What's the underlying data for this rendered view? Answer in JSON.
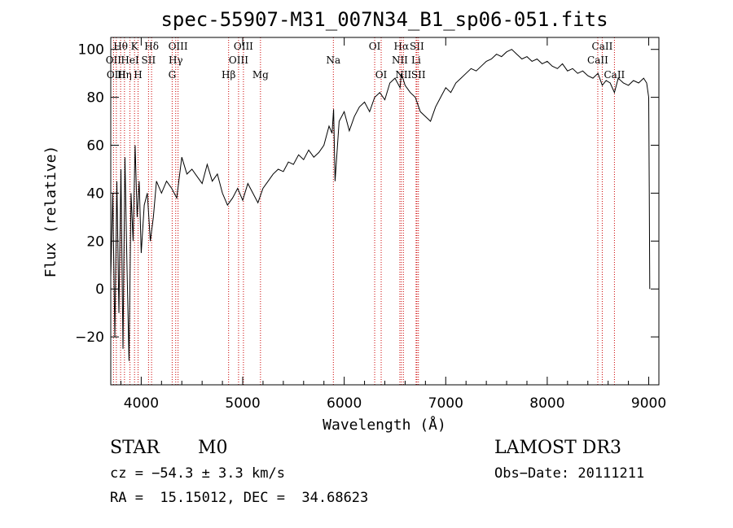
{
  "chart_data": {
    "type": "line",
    "title": "spec-55907-M31_007N34_B1_sp06-051.fits",
    "xlabel": "Wavelength (Å)",
    "ylabel": "Flux (relative)",
    "xlim": [
      3700,
      9100
    ],
    "ylim": [
      -40,
      105
    ],
    "xticks": [
      4000,
      5000,
      6000,
      7000,
      8000,
      9000
    ],
    "yticks": [
      -20,
      0,
      20,
      40,
      60,
      80,
      100
    ],
    "series": [
      {
        "name": "flux",
        "x": [
          3700,
          3720,
          3740,
          3760,
          3780,
          3800,
          3820,
          3840,
          3860,
          3880,
          3900,
          3920,
          3940,
          3960,
          3980,
          4000,
          4030,
          4060,
          4090,
          4120,
          4150,
          4200,
          4250,
          4300,
          4350,
          4400,
          4450,
          4500,
          4550,
          4600,
          4650,
          4700,
          4750,
          4800,
          4850,
          4900,
          4950,
          5000,
          5050,
          5100,
          5150,
          5200,
          5250,
          5300,
          5350,
          5400,
          5450,
          5500,
          5550,
          5600,
          5650,
          5700,
          5750,
          5800,
          5850,
          5880,
          5895,
          5910,
          5950,
          6000,
          6050,
          6100,
          6150,
          6200,
          6250,
          6300,
          6350,
          6400,
          6450,
          6500,
          6550,
          6563,
          6600,
          6650,
          6700,
          6750,
          6800,
          6850,
          6900,
          6950,
          7000,
          7050,
          7100,
          7150,
          7200,
          7250,
          7300,
          7350,
          7400,
          7450,
          7500,
          7550,
          7600,
          7650,
          7700,
          7750,
          7800,
          7850,
          7900,
          7950,
          8000,
          8050,
          8100,
          8150,
          8200,
          8250,
          8300,
          8350,
          8400,
          8450,
          8500,
          8542,
          8580,
          8620,
          8662,
          8700,
          8750,
          8800,
          8850,
          8900,
          8950,
          8980,
          9000,
          9005,
          9010
        ],
        "values": [
          5,
          40,
          -20,
          45,
          -10,
          50,
          -25,
          55,
          10,
          -30,
          40,
          20,
          60,
          30,
          45,
          15,
          35,
          40,
          20,
          30,
          45,
          40,
          45,
          42,
          38,
          55,
          48,
          50,
          47,
          44,
          52,
          45,
          48,
          40,
          35,
          38,
          42,
          37,
          44,
          40,
          36,
          42,
          45,
          48,
          50,
          49,
          53,
          52,
          56,
          54,
          58,
          55,
          57,
          60,
          68,
          65,
          75,
          45,
          70,
          74,
          66,
          72,
          76,
          78,
          74,
          80,
          82,
          79,
          86,
          88,
          84,
          90,
          85,
          82,
          80,
          74,
          72,
          70,
          76,
          80,
          84,
          82,
          86,
          88,
          90,
          92,
          91,
          93,
          95,
          96,
          98,
          97,
          99,
          100,
          98,
          96,
          97,
          95,
          96,
          94,
          95,
          93,
          92,
          94,
          91,
          92,
          90,
          91,
          89,
          88,
          90,
          85,
          87,
          86,
          82,
          88,
          86,
          85,
          87,
          86,
          88,
          86,
          80,
          40,
          0
        ]
      }
    ],
    "line_markers": [
      {
        "label": "Hθ",
        "wave": 3797,
        "row": 1
      },
      {
        "label": "OII",
        "wave": 3727,
        "row": 2
      },
      {
        "label": "OIII",
        "wave": 3755,
        "row": 3
      },
      {
        "label": "Hη",
        "wave": 3835,
        "row": 3
      },
      {
        "label": "K",
        "wave": 3934,
        "row": 1
      },
      {
        "label": "HeI",
        "wave": 3889,
        "row": 2
      },
      {
        "label": "H",
        "wave": 3969,
        "row": 3
      },
      {
        "label": "Hδ",
        "wave": 4102,
        "row": 1
      },
      {
        "label": "SII",
        "wave": 4072,
        "row": 2
      },
      {
        "label": "OIII",
        "wave": 4363,
        "row": 1
      },
      {
        "label": "Hγ",
        "wave": 4340,
        "row": 2
      },
      {
        "label": "G",
        "wave": 4305,
        "row": 3
      },
      {
        "label": "OIII",
        "wave": 5007,
        "row": 1
      },
      {
        "label": "OIII",
        "wave": 4959,
        "row": 2
      },
      {
        "label": "Hβ",
        "wave": 4861,
        "row": 3
      },
      {
        "label": "Mg",
        "wave": 5175,
        "row": 3
      },
      {
        "label": "Na",
        "wave": 5893,
        "row": 2
      },
      {
        "label": "OI",
        "wave": 6300,
        "row": 1
      },
      {
        "label": "OI",
        "wave": 6364,
        "row": 3
      },
      {
        "label": "Hα",
        "wave": 6563,
        "row": 1
      },
      {
        "label": "NII",
        "wave": 6548,
        "row": 2
      },
      {
        "label": "NII",
        "wave": 6583,
        "row": 3
      },
      {
        "label": "Li",
        "wave": 6708,
        "row": 2
      },
      {
        "label": "SII",
        "wave": 6716,
        "row": 1
      },
      {
        "label": "SII",
        "wave": 6731,
        "row": 3
      },
      {
        "label": "CaII",
        "wave": 8542,
        "row": 1
      },
      {
        "label": "CaII",
        "wave": 8498,
        "row": 2
      },
      {
        "label": "CaII",
        "wave": 8662,
        "row": 3
      }
    ]
  },
  "info": {
    "class": "STAR",
    "subclass": "M0",
    "survey": "LAMOST DR3",
    "cz": "cz = −54.3 ± 3.3 km/s",
    "obs_date": "Obs−Date: 20111211",
    "coords": "RA =  15.15012, DEC =  34.68623"
  }
}
